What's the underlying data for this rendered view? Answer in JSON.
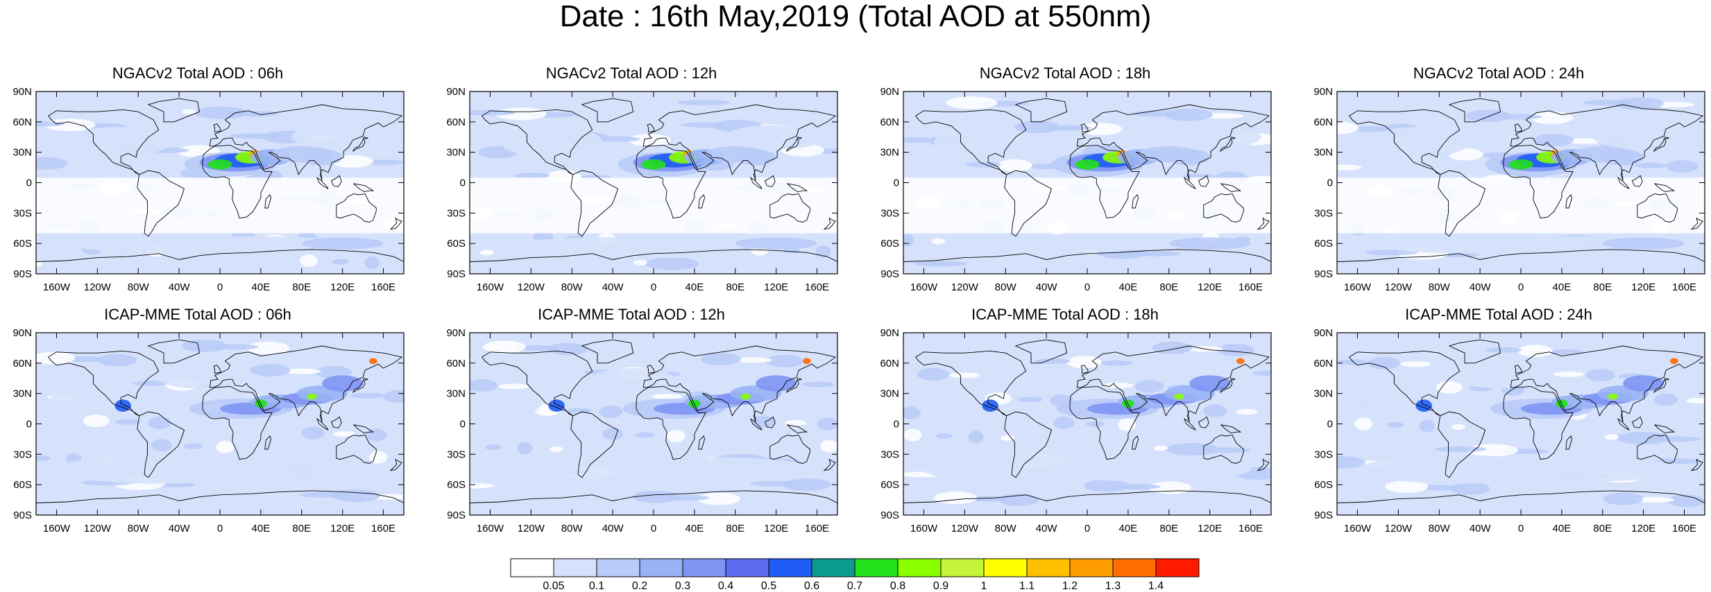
{
  "title": "Date : 16th May,2019 (Total AOD at 550nm)",
  "lon_ticks": [
    "160W",
    "120W",
    "80W",
    "40W",
    "0",
    "40E",
    "80E",
    "120E",
    "160E"
  ],
  "lat_ticks": [
    "90N",
    "60N",
    "30N",
    "0",
    "30S",
    "60S",
    "90S"
  ],
  "panels": [
    {
      "title": "NGACv2 Total AOD : 06h",
      "model": "NGACv2",
      "hour": "06h"
    },
    {
      "title": "NGACv2 Total AOD : 12h",
      "model": "NGACv2",
      "hour": "12h"
    },
    {
      "title": "NGACv2 Total AOD : 18h",
      "model": "NGACv2",
      "hour": "18h"
    },
    {
      "title": "NGACv2 Total AOD : 24h",
      "model": "NGACv2",
      "hour": "24h"
    },
    {
      "title": "ICAP-MME Total AOD : 06h",
      "model": "ICAP-MME",
      "hour": "06h"
    },
    {
      "title": "ICAP-MME Total AOD : 12h",
      "model": "ICAP-MME",
      "hour": "12h"
    },
    {
      "title": "ICAP-MME Total AOD : 18h",
      "model": "ICAP-MME",
      "hour": "18h"
    },
    {
      "title": "ICAP-MME Total AOD : 24h",
      "model": "ICAP-MME",
      "hour": "24h"
    }
  ],
  "colorbar": {
    "labels": [
      "0.05",
      "0.1",
      "0.2",
      "0.3",
      "0.4",
      "0.5",
      "0.6",
      "0.7",
      "0.8",
      "0.9",
      "1",
      "1.1",
      "1.2",
      "1.3",
      "1.4"
    ],
    "colors": [
      "#ffffff",
      "#d6e2fb",
      "#b9cbf8",
      "#98b2f6",
      "#7e95f3",
      "#5e6cf0",
      "#1e5cf5",
      "#0a9a8f",
      "#22e01a",
      "#8aff00",
      "#c4f53a",
      "#ffff00",
      "#ffc000",
      "#ff9d00",
      "#ff6d00",
      "#ff1a00"
    ]
  },
  "map_colors": {
    "ocean_low": "#ffffff",
    "ocean_mid": "#d6e2fb",
    "ocean_high": "#b9cbf8",
    "coast": "#000000"
  }
}
